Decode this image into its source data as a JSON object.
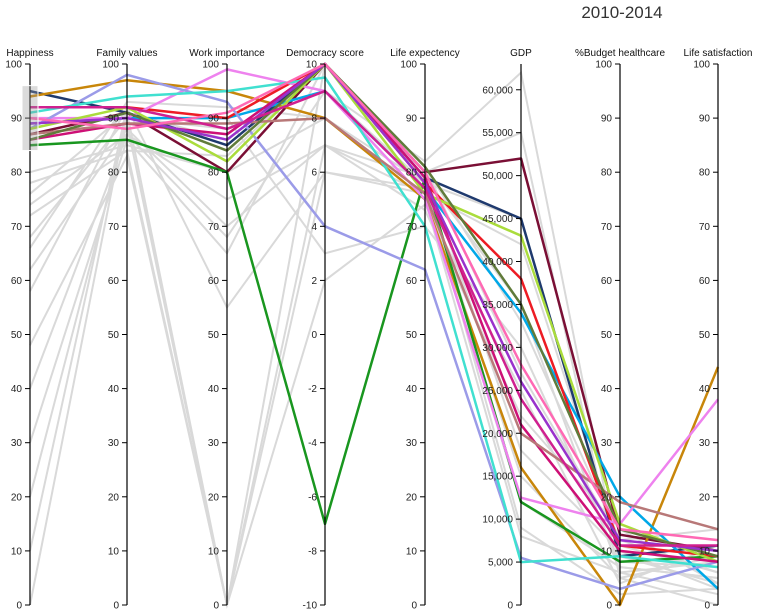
{
  "chart_data": {
    "type": "parallel-coordinates",
    "title": "2010-2014",
    "axes": [
      {
        "key": "happiness",
        "label": "Happiness",
        "range": [
          0,
          100
        ],
        "ticks": [
          0,
          10,
          20,
          30,
          40,
          50,
          60,
          70,
          80,
          90,
          100
        ],
        "tick_labels": [
          "0",
          "10",
          "20",
          "30",
          "40",
          "50",
          "60",
          "70",
          "80",
          "90",
          "100"
        ]
      },
      {
        "key": "family",
        "label": "Family values",
        "range": [
          0,
          100
        ],
        "ticks": [
          0,
          10,
          20,
          30,
          40,
          50,
          60,
          70,
          80,
          90,
          100
        ],
        "tick_labels": [
          "0",
          "10",
          "20",
          "30",
          "40",
          "50",
          "60",
          "70",
          "80",
          "90",
          "100"
        ]
      },
      {
        "key": "work",
        "label": "Work importance",
        "range": [
          0,
          100
        ],
        "ticks": [
          0,
          10,
          20,
          30,
          40,
          50,
          60,
          70,
          80,
          90,
          100
        ],
        "tick_labels": [
          "0",
          "10",
          "20",
          "30",
          "40",
          "50",
          "60",
          "70",
          "80",
          "90",
          "100"
        ]
      },
      {
        "key": "democracy",
        "label": "Democracy score",
        "range": [
          -10,
          10
        ],
        "ticks": [
          -10,
          -8,
          -6,
          -4,
          -2,
          0,
          2,
          4,
          6,
          8,
          10
        ],
        "tick_labels": [
          "-10",
          "-8",
          "-6",
          "-4",
          "-2",
          "0",
          "2",
          "4",
          "6",
          "8",
          "10"
        ]
      },
      {
        "key": "life_exp",
        "label": "Life expectency",
        "range": [
          0,
          100
        ],
        "ticks": [
          0,
          10,
          20,
          30,
          40,
          50,
          60,
          70,
          80,
          90,
          100
        ],
        "tick_labels": [
          "0",
          "10",
          "20",
          "30",
          "40",
          "50",
          "60",
          "70",
          "80",
          "90",
          "100"
        ]
      },
      {
        "key": "gdp",
        "label": "GDP",
        "range": [
          0,
          63000
        ],
        "ticks": [
          0,
          5000,
          10000,
          15000,
          20000,
          25000,
          30000,
          35000,
          40000,
          45000,
          50000,
          55000,
          60000
        ],
        "tick_labels": [
          "0",
          "5,000",
          "10,000",
          "15,000",
          "20,000",
          "25,000",
          "30,000",
          "35,000",
          "40,000",
          "45,000",
          "50,000",
          "55,000",
          "60,000"
        ]
      },
      {
        "key": "budget",
        "label": "%Budget healthcare",
        "range": [
          0,
          100
        ],
        "ticks": [
          0,
          10,
          20,
          30,
          40,
          50,
          60,
          70,
          80,
          90,
          100
        ],
        "tick_labels": [
          "0",
          "10",
          "20",
          "30",
          "40",
          "50",
          "60",
          "70",
          "80",
          "90",
          "100"
        ]
      },
      {
        "key": "life_sat",
        "label": "Life satisfaction",
        "range": [
          0,
          100
        ],
        "ticks": [
          0,
          10,
          20,
          30,
          40,
          50,
          60,
          70,
          80,
          90,
          100
        ],
        "tick_labels": [
          "0",
          "10",
          "20",
          "30",
          "40",
          "50",
          "60",
          "70",
          "80",
          "90",
          "100"
        ]
      }
    ],
    "brush": {
      "axis": "happiness",
      "range": [
        84,
        96
      ]
    },
    "highlighted": [
      {
        "color": "#1f3a6e",
        "values": [
          95,
          91,
          85,
          10,
          79,
          45000,
          9,
          11
        ]
      },
      {
        "color": "#7a0f35",
        "values": [
          87,
          91,
          80,
          10,
          80,
          52000,
          13,
          10
        ]
      },
      {
        "color": "#c8860a",
        "values": [
          94,
          97,
          95,
          8,
          75,
          16000,
          0,
          44
        ]
      },
      {
        "color": "#19961f",
        "values": [
          85,
          86,
          80,
          -7,
          79,
          12000,
          8,
          9
        ]
      },
      {
        "color": "#00a8e8",
        "values": [
          89,
          90,
          90,
          9,
          77,
          34000,
          20,
          3
        ]
      },
      {
        "color": "#ed1c24",
        "values": [
          92,
          92,
          90,
          10,
          78,
          38000,
          11,
          9
        ]
      },
      {
        "color": "#ee82ee",
        "values": [
          90,
          90,
          99,
          9,
          75,
          12500,
          15,
          38
        ]
      },
      {
        "color": "#9b9be8",
        "values": [
          88,
          98,
          93,
          4,
          62,
          5500,
          3,
          8
        ]
      },
      {
        "color": "#40e0d0",
        "values": [
          91,
          94,
          95,
          9.5,
          70,
          5000,
          9,
          7
        ]
      },
      {
        "color": "#aadc3c",
        "values": [
          88,
          92,
          82,
          10,
          76,
          43000,
          15,
          8
        ]
      },
      {
        "color": "#cd1076",
        "values": [
          86,
          89,
          87,
          10,
          79,
          21000,
          10,
          8
        ]
      },
      {
        "color": "#b87878",
        "values": [
          87,
          89,
          89,
          8,
          76,
          20000,
          19,
          14
        ]
      },
      {
        "color": "#607b3a",
        "values": [
          86,
          91,
          84,
          10,
          81,
          35000,
          14,
          9
        ]
      },
      {
        "color": "#9932cc",
        "values": [
          89,
          90,
          86,
          10,
          78,
          26000,
          12,
          10
        ]
      },
      {
        "color": "#d02090",
        "values": [
          92,
          92,
          88,
          9,
          77,
          24000,
          11,
          11
        ]
      },
      {
        "color": "#ff69b4",
        "values": [
          90,
          88,
          91,
          10,
          80,
          28000,
          14,
          12
        ]
      }
    ],
    "background": [
      {
        "values": [
          68,
          90,
          88,
          9,
          82,
          62000,
          7,
          5
        ]
      },
      {
        "values": [
          76,
          91,
          86,
          10,
          80,
          55000,
          5,
          9
        ]
      },
      {
        "values": [
          80,
          85,
          80,
          8,
          78,
          45000,
          9,
          4
        ]
      },
      {
        "values": [
          72,
          84,
          0,
          6,
          76,
          42000,
          11,
          6
        ]
      },
      {
        "values": [
          62,
          88,
          70,
          7,
          79,
          35000,
          6,
          2
        ]
      },
      {
        "values": [
          58,
          92,
          90,
          3,
          70,
          30000,
          8,
          7
        ]
      },
      {
        "values": [
          48,
          83,
          0,
          2,
          74,
          25000,
          4,
          11
        ]
      },
      {
        "values": [
          40,
          87,
          75,
          7,
          73,
          22000,
          14,
          4
        ]
      },
      {
        "values": [
          30,
          86,
          65,
          10,
          81,
          27000,
          12,
          6
        ]
      },
      {
        "values": [
          20,
          89,
          0,
          10,
          80,
          18000,
          10,
          3
        ]
      },
      {
        "values": [
          10,
          92,
          55,
          6,
          77,
          15000,
          5,
          0
        ]
      },
      {
        "values": [
          0,
          91,
          0,
          7,
          76,
          12000,
          7,
          5
        ]
      },
      {
        "values": [
          74,
          87,
          68,
          9,
          78,
          9000,
          2,
          3
        ]
      },
      {
        "values": [
          66,
          93,
          92,
          8,
          75,
          8000,
          6,
          8
        ]
      },
      {
        "values": [
          78,
          84,
          83,
          10,
          81,
          33000,
          12,
          14
        ]
      }
    ]
  }
}
